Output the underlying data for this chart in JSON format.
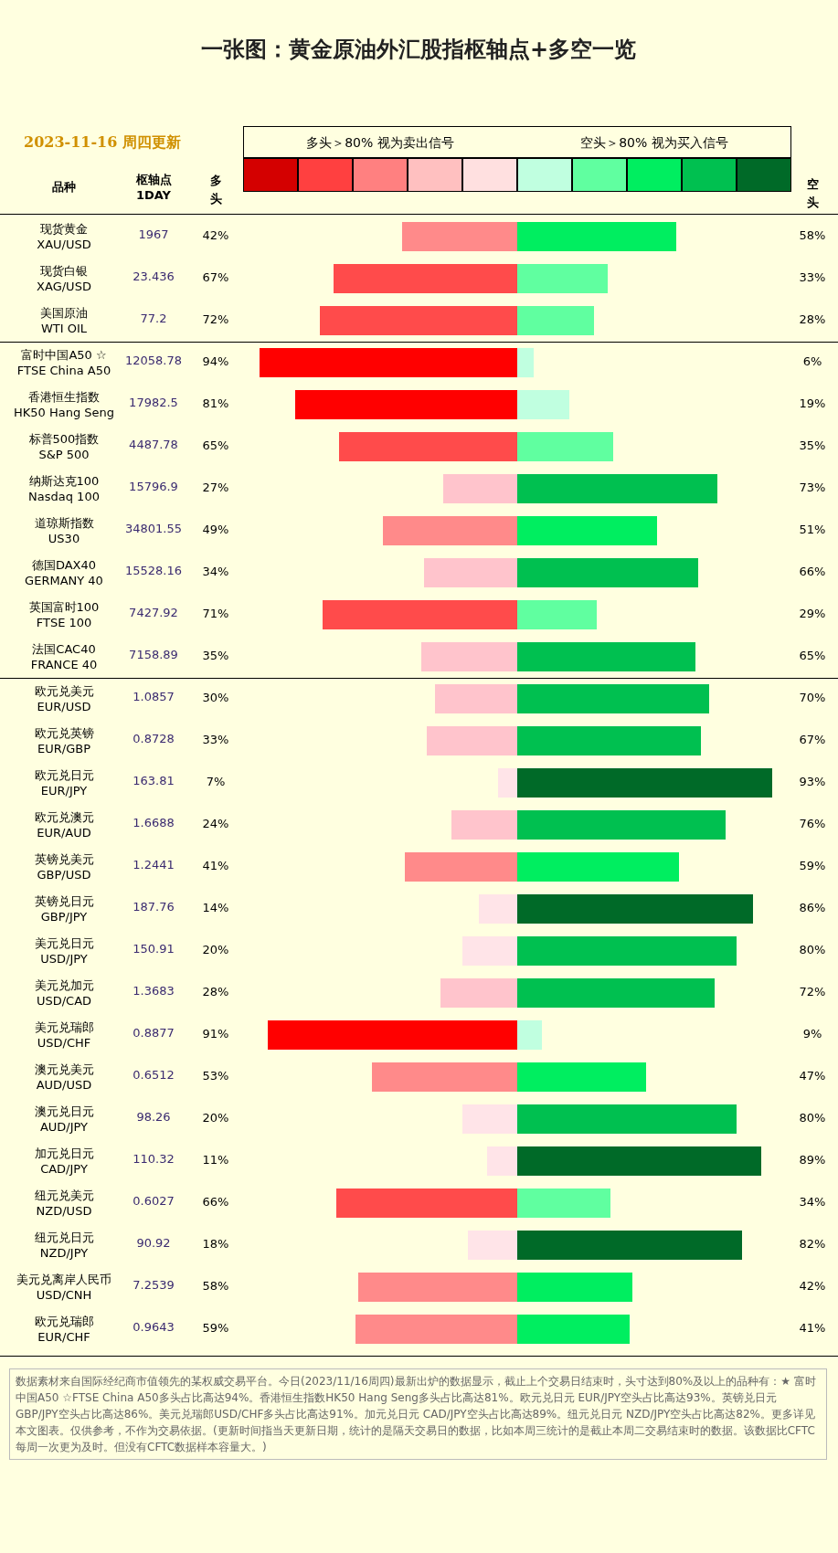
{
  "chart_data": [
    {
      "type": "bar",
      "orientation": "horizontal",
      "title": "一张图：黄金原油外汇股指枢轴点+多空一览",
      "subtitle": "2023-11-16  周四更新",
      "ylabel": "品种",
      "categories": [
        "现货黄金\nXAU/USD",
        "现货白银\nXAG/USD",
        "美国原油\nWTI OIL",
        "富时中国A50 ☆\nFTSE China A50",
        "香港恒生指数\nHK50 Hang Seng",
        "标普500指数\nS&P 500",
        "纳斯达克100\nNasdaq 100",
        "道琼斯指数\nUS30",
        "德国DAX40\nGERMANY 40",
        "英国富时100\nFTSE 100",
        "法国CAC40\nFRANCE 40",
        "欧元兑美元\nEUR/USD",
        "欧元兑英镑\nEUR/GBP",
        "欧元兑日元\nEUR/JPY",
        "欧元兑澳元\nEUR/AUD",
        "英镑兑美元\nGBP/USD",
        "英镑兑日元\nGBP/JPY",
        "美元兑日元\nUSD/JPY",
        "美元兑加元\nUSD/CAD",
        "美元兑瑞郎\nUSD/CHF",
        "澳元兑美元\nAUD/USD",
        "澳元兑日元\nAUD/JPY",
        "加元兑日元\nCAD/JPY",
        "纽元兑美元\nNZD/USD",
        "纽元兑日元\nNZD/JPY",
        "美元兑离岸人民币\nUSD/CNH",
        "欧元兑瑞郎\nEUR/CHF"
      ],
      "series": [
        {
          "name": "多头",
          "values": [
            42,
            67,
            72,
            94,
            81,
            65,
            27,
            49,
            34,
            71,
            35,
            30,
            33,
            7,
            24,
            41,
            14,
            20,
            28,
            91,
            53,
            20,
            11,
            66,
            18,
            58,
            59
          ],
          "value_labels": [
            "42%",
            "67%",
            "72%",
            "94%",
            "81%",
            "65%",
            "27%",
            "49%",
            "34%",
            "71%",
            "35%",
            "30%",
            "33%",
            "7%",
            "24%",
            "41%",
            "14%",
            "20%",
            "28%",
            "91%",
            "53%",
            "20%",
            "11%",
            "66%",
            "18%",
            "58%",
            "59%"
          ],
          "colors": [
            "#ff8a8a",
            "#ff4b4b",
            "#ff4b4b",
            "#ff0000",
            "#ff0000",
            "#ff4b4b",
            "#ffc4cc",
            "#ff8a8a",
            "#ffc4cc",
            "#ff4b4b",
            "#ffc4cc",
            "#ffc4cc",
            "#ffc4cc",
            "#ffe4e8",
            "#ffc4cc",
            "#ff8a8a",
            "#ffe4e8",
            "#ffe4e8",
            "#ffc4cc",
            "#ff0000",
            "#ff8a8a",
            "#ffe4e8",
            "#ffe4e8",
            "#ff4b4b",
            "#ffe4e8",
            "#ff8a8a",
            "#ff8a8a"
          ]
        }
      ],
      "tick_labels": "y",
      "annotations": [
        "枢轴点\n1DAY",
        "多头＞80%  视为卖出信号",
        "空头＞80%  视为买入信号",
        "数据素材来自国际经纪商市值领先的某权威交易平台。今日(2023/11/16周四)最新出炉的数据显示，截止上个交易日结束时，头寸达到80%及以上的品种有：★ 富时中国A50 ☆FTSE China A50多头占比高达94%。香港恒生指数HK50 Hang Seng多头占比高达81%。欧元兑日元 EUR/JPY空头占比高达93%。英镑兑日元 GBP/JPY空头占比高达86%。美元兑瑞郎USD/CHF多头占比高达91%。加元兑日元 CAD/JPY空头占比高达89%。纽元兑日元 NZD/JPY空头占比高达82%。更多详见本文图表。仅供参考，不作为交易依据。(更新时间指当天更新日期，统计的是隔天交易日的数据，比如本周三统计的是截止本周二交易结束时的数据。该数据比CFTC每周一次更为及时。但没有CFTC数据样本容量大。)",
        "1967",
        "23.436",
        "77.2",
        "12058.78",
        "17982.5",
        "4487.78",
        "15796.9",
        "34801.55",
        "15528.16",
        "7427.92",
        "7158.89",
        "1.0857",
        "0.8728",
        "163.81",
        "1.6688",
        "1.2441",
        "187.76",
        "150.91",
        "1.3683",
        "0.8877",
        "0.6512",
        "98.26",
        "110.32",
        "0.6027",
        "90.92",
        "7.2539",
        "0.9643"
      ]
    },
    {
      "type": "bar",
      "orientation": "horizontal",
      "series": [
        {
          "name": "空头",
          "values": [
            58,
            33,
            28,
            6,
            19,
            35,
            73,
            51,
            66,
            29,
            65,
            70,
            67,
            93,
            76,
            59,
            86,
            80,
            72,
            9,
            47,
            80,
            89,
            34,
            82,
            42,
            41
          ],
          "value_labels": [
            "58%",
            "33%",
            "28%",
            "6%",
            "19%",
            "35%",
            "73%",
            "51%",
            "66%",
            "29%",
            "65%",
            "70%",
            "67%",
            "93%",
            "76%",
            "59%",
            "86%",
            "80%",
            "72%",
            "9%",
            "47%",
            "80%",
            "89%",
            "34%",
            "82%",
            "42%",
            "41%"
          ],
          "colors": [
            "#00ee60",
            "#60ffa0",
            "#60ffa0",
            "#c0ffe0",
            "#c0ffe0",
            "#60ffa0",
            "#00c050",
            "#00ee60",
            "#00c050",
            "#60ffa0",
            "#00c050",
            "#00c050",
            "#00c050",
            "#006a28",
            "#00c050",
            "#00ee60",
            "#006a28",
            "#00c050",
            "#00c050",
            "#c0ffe0",
            "#00ee60",
            "#00c050",
            "#006a28",
            "#60ffa0",
            "#006a28",
            "#00ee60",
            "#00ee60"
          ]
        }
      ],
      "tick_labels": false
    }
  ]
}
